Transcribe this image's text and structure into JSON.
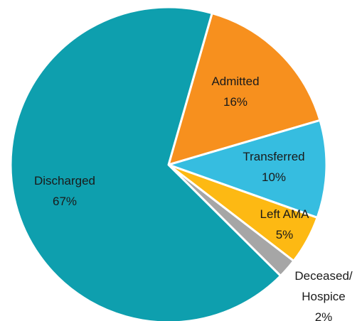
{
  "chart_data": {
    "type": "pie",
    "categories": [
      "Admitted",
      "Transferred",
      "Left AMA",
      "Deceased/ Hospice",
      "Discharged"
    ],
    "values": [
      16,
      10,
      5,
      2,
      67
    ],
    "value_labels": [
      "16%",
      "10%",
      "5%",
      "2%",
      "67%"
    ],
    "colors": [
      "#f7901e",
      "#36bde0",
      "#fdb913",
      "#a6a6a6",
      "#0e9fae"
    ]
  }
}
